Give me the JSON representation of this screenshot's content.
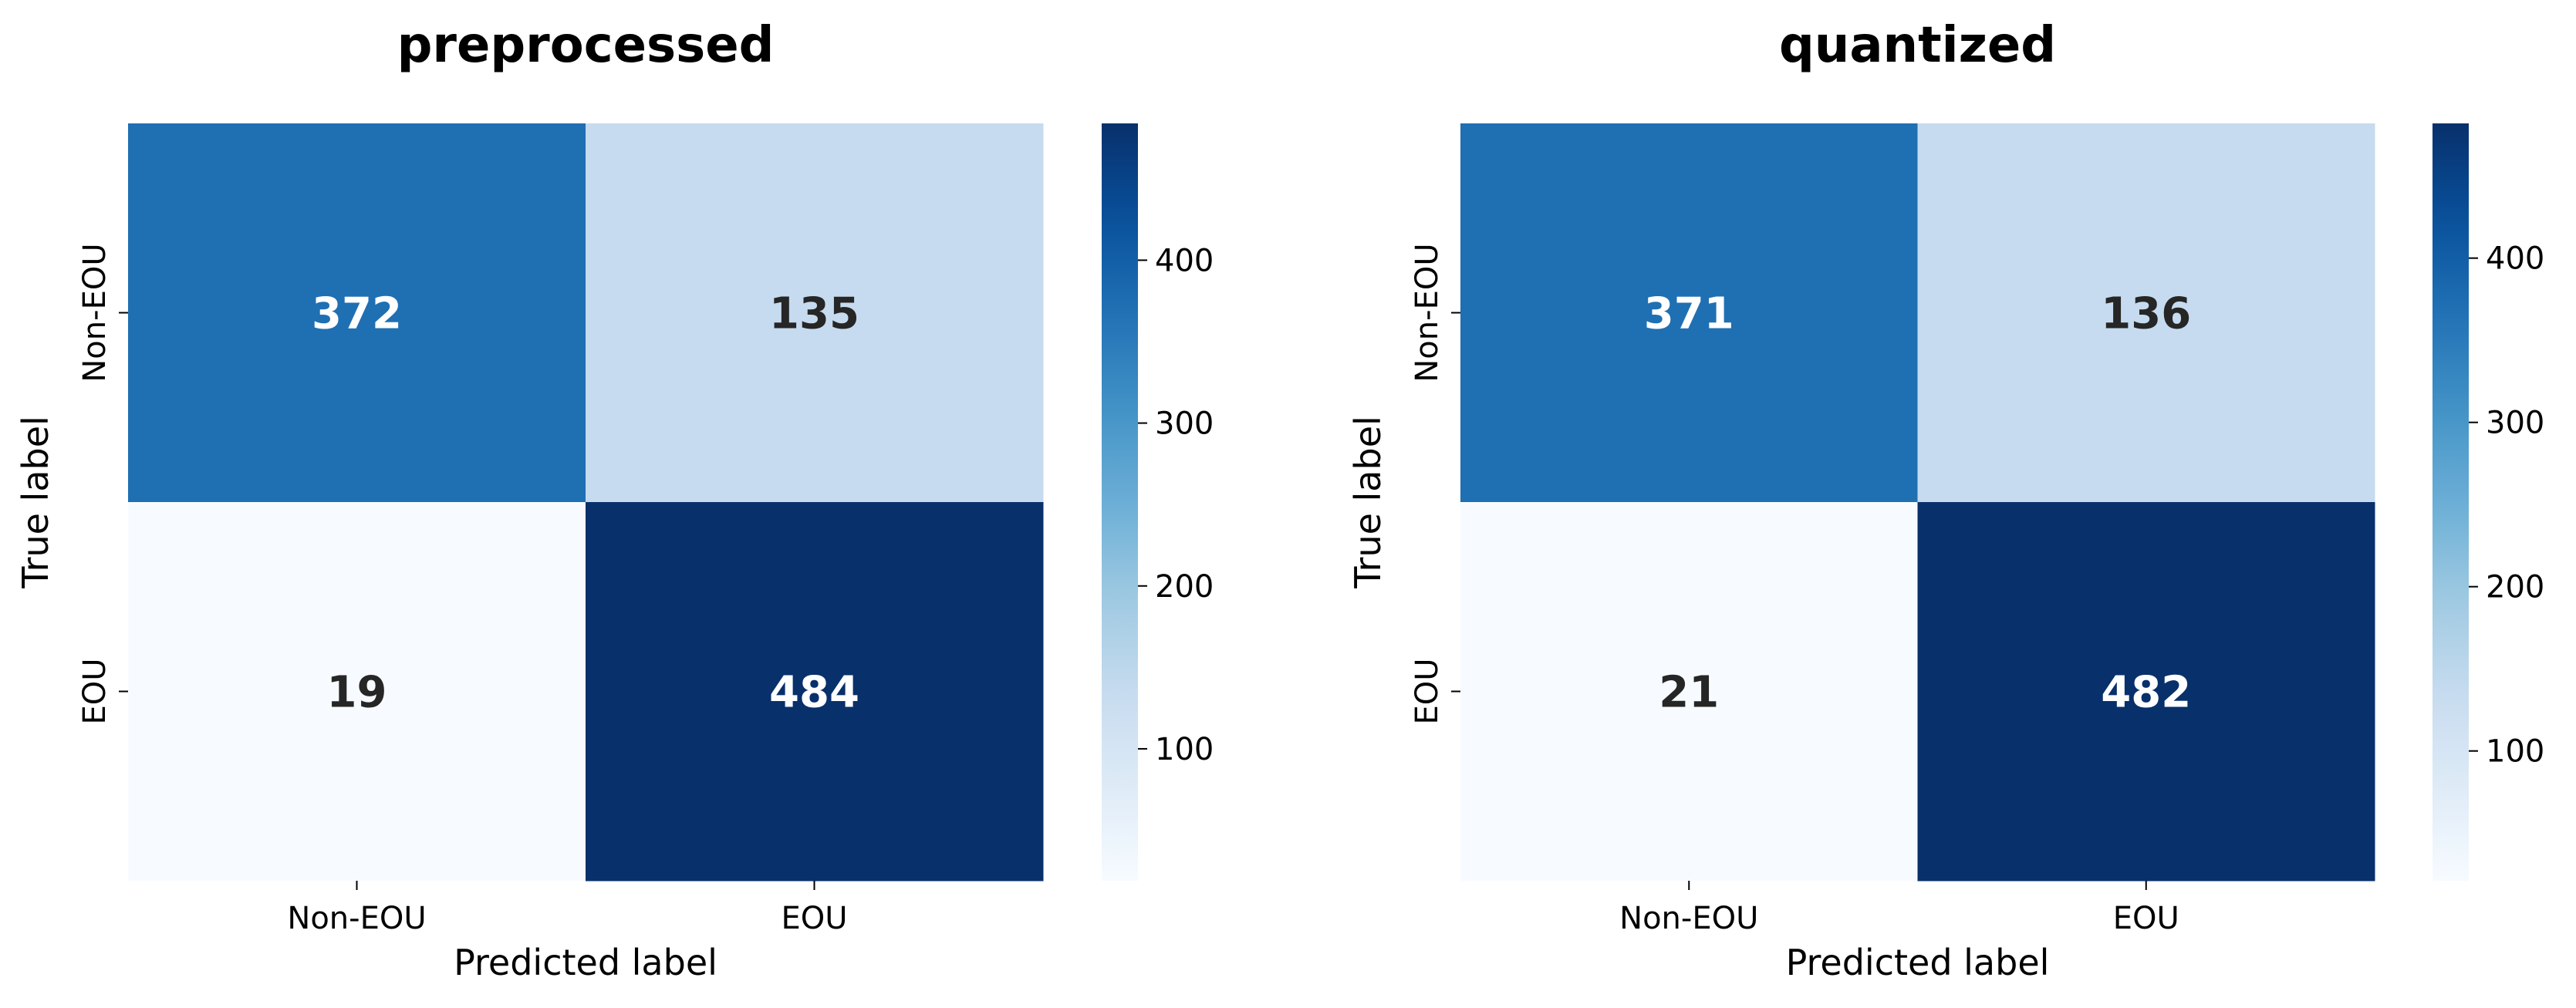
{
  "chart_data": [
    {
      "type": "heatmap",
      "title": "preprocessed",
      "xlabel": "Predicted label",
      "ylabel": "True label",
      "x_categories": [
        "Non-EOU",
        "EOU"
      ],
      "y_categories": [
        "Non-EOU",
        "EOU"
      ],
      "values": [
        [
          372,
          135
        ],
        [
          19,
          484
        ]
      ],
      "colorbar": {
        "colormap": "Blues",
        "range": [
          19,
          484
        ],
        "ticks": [
          100,
          200,
          300,
          400
        ]
      }
    },
    {
      "type": "heatmap",
      "title": "quantized",
      "xlabel": "Predicted label",
      "ylabel": "True label",
      "x_categories": [
        "Non-EOU",
        "EOU"
      ],
      "y_categories": [
        "Non-EOU",
        "EOU"
      ],
      "values": [
        [
          371,
          136
        ],
        [
          21,
          482
        ]
      ],
      "colorbar": {
        "colormap": "Blues",
        "range": [
          21,
          482
        ],
        "ticks": [
          100,
          200,
          300,
          400
        ]
      }
    }
  ]
}
